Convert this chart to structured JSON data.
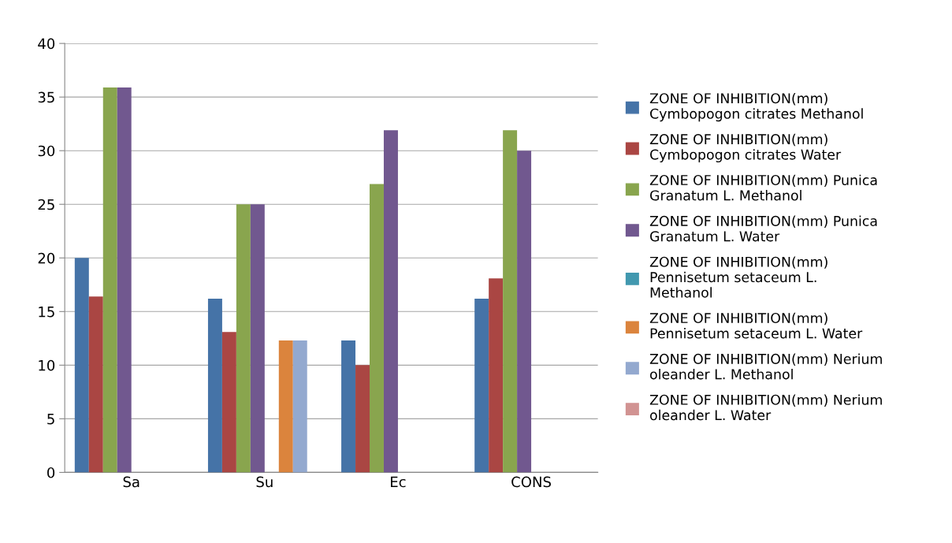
{
  "chart_data": {
    "type": "bar",
    "categories": [
      "Sa",
      "Su",
      "Ec",
      "CONS"
    ],
    "series": [
      {
        "name": "ZONE OF INHIBITION(mm) Cymbopogon citrates Methanol",
        "color": "#4573a7",
        "values": [
          20,
          16.2,
          12.3,
          16.2
        ]
      },
      {
        "name": "ZONE OF INHIBITION(mm) Cymbopogon citrates Water",
        "color": "#aa4643",
        "values": [
          16.4,
          13.1,
          10,
          18.1
        ]
      },
      {
        "name": "ZONE OF INHIBITION(mm) Punica Granatum L. Methanol",
        "color": "#89a54e",
        "values": [
          35.9,
          25,
          26.9,
          31.9
        ]
      },
      {
        "name": "ZONE OF INHIBITION(mm) Punica Granatum L. Water",
        "color": "#71588f",
        "values": [
          35.9,
          25,
          31.9,
          30
        ]
      },
      {
        "name": "ZONE OF INHIBITION(mm) Pennisetum setaceum L. Methanol",
        "color": "#4198af",
        "values": [
          null,
          null,
          null,
          null
        ]
      },
      {
        "name": "ZONE OF INHIBITION(mm) Pennisetum setaceum L. Water",
        "color": "#db843d",
        "values": [
          null,
          12.3,
          null,
          null
        ]
      },
      {
        "name": "ZONE OF INHIBITION(mm) Nerium oleander L. Methanol",
        "color": "#93a9cf",
        "values": [
          null,
          12.3,
          null,
          null
        ]
      },
      {
        "name": "ZONE OF INHIBITION(mm) Nerium oleander L. Water",
        "color": "#d19392",
        "values": [
          null,
          null,
          null,
          null
        ]
      }
    ],
    "ylim": [
      0,
      40
    ],
    "yticks": [
      0,
      5,
      10,
      15,
      20,
      25,
      30,
      35,
      40
    ],
    "grid": "y",
    "legend": "right"
  }
}
